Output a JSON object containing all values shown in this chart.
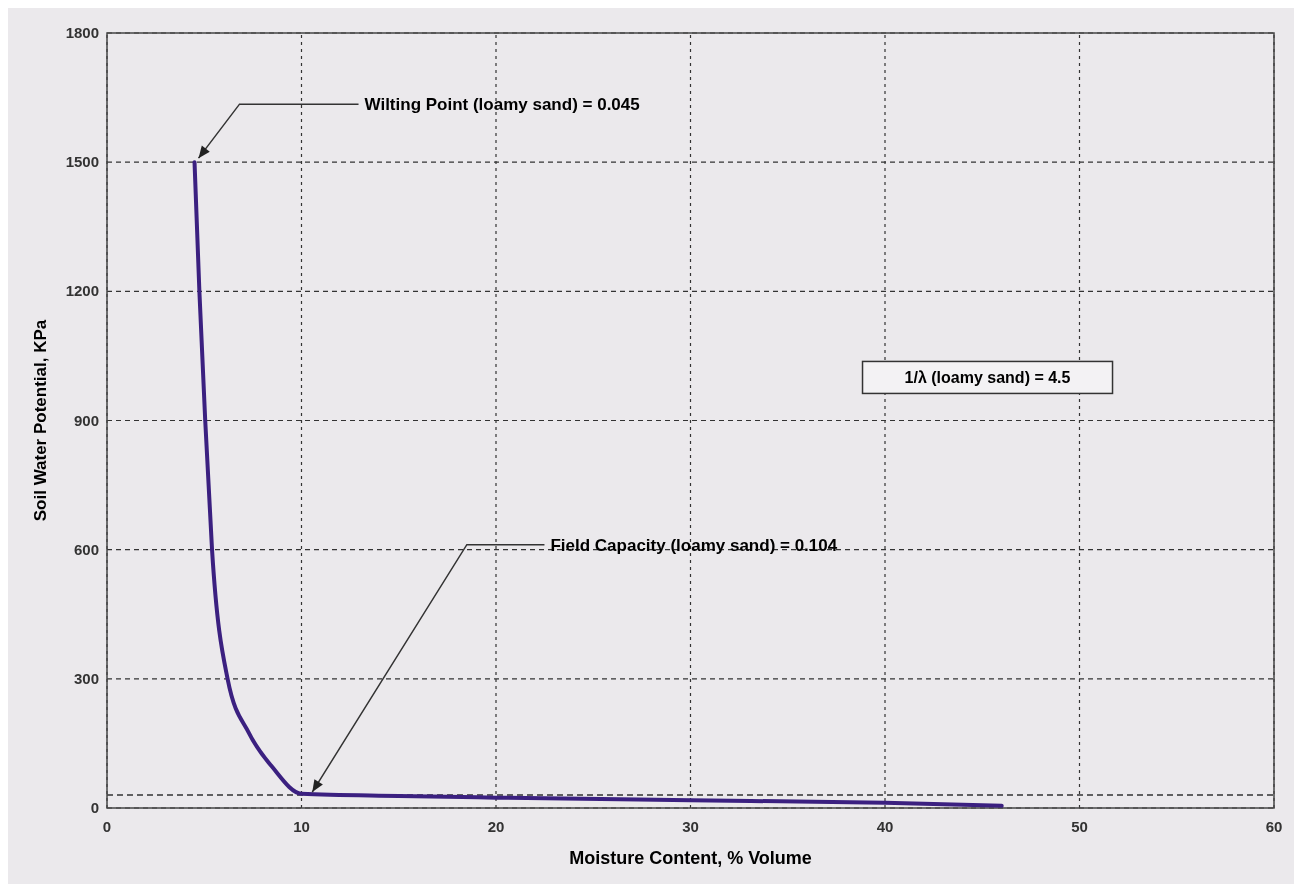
{
  "chart_data": {
    "type": "line",
    "xlabel": "Moisture Content, % Volume",
    "ylabel": "Soil Water Potential, KPa",
    "xlim": [
      0,
      60
    ],
    "xticks": [
      0,
      10,
      20,
      30,
      40,
      50,
      60
    ],
    "ylim": [
      0,
      1800
    ],
    "yticks": [
      0,
      300,
      600,
      900,
      1200,
      1500,
      1800
    ],
    "grid": true,
    "marker": "none",
    "line_style": "solid",
    "series": [
      {
        "color": "#3b2080",
        "x": [
          4.5,
          4.75,
          5.05,
          5.4,
          6.2,
          7.3,
          8.5,
          10,
          15,
          20,
          30,
          40,
          46
        ],
        "values": [
          1500,
          1200,
          900,
          600,
          300,
          174,
          95,
          33,
          28,
          24,
          18,
          12,
          5
        ]
      }
    ],
    "ref_lines": [
      {
        "axis": "y",
        "value": 30,
        "line_style": "dashed",
        "color": "#333333"
      }
    ],
    "annotations": [
      {
        "text": "Wilting Point (loamy sand) = 0.045",
        "x": 4.5,
        "y": 1500
      },
      {
        "text": "Field Capacity (loamy sand) = 0.104",
        "x": 10.4,
        "y": 30
      },
      "1/λ (loamy sand) = 4.5"
    ]
  }
}
